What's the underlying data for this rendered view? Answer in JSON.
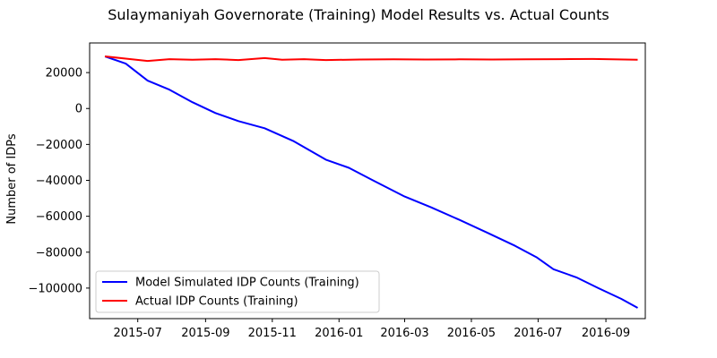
{
  "chart_data": {
    "type": "line",
    "title": "Sulaymaniyah Governorate (Training) Model Results vs. Actual Counts",
    "xlabel": "",
    "ylabel": "Number of IDPs",
    "x_ticks": [
      "2015-07",
      "2015-09",
      "2015-11",
      "2016-01",
      "2016-03",
      "2016-05",
      "2016-07",
      "2016-09"
    ],
    "y_ticks": [
      20000,
      0,
      -20000,
      -40000,
      -60000,
      -80000,
      -100000
    ],
    "y_tick_labels": [
      "20000",
      "0",
      "−20000",
      "−40000",
      "−60000",
      "−80000",
      "−100000"
    ],
    "ylim": [
      -117000,
      36500
    ],
    "xlim": [
      "2015-05-18",
      "2016-10-07"
    ],
    "grid": false,
    "legend_position": "lower-left",
    "series": [
      {
        "name": "Model Simulated IDP Counts (Training)",
        "color": "#0000ff",
        "points": [
          [
            "2015-06-01",
            29000
          ],
          [
            "2015-06-20",
            25000
          ],
          [
            "2015-07-10",
            15500
          ],
          [
            "2015-07-30",
            10500
          ],
          [
            "2015-08-20",
            3500
          ],
          [
            "2015-09-10",
            -2500
          ],
          [
            "2015-10-01",
            -7000
          ],
          [
            "2015-10-25",
            -11000
          ],
          [
            "2015-11-20",
            -18000
          ],
          [
            "2015-12-20",
            -28500
          ],
          [
            "2016-01-10",
            -33000
          ],
          [
            "2016-02-01",
            -40000
          ],
          [
            "2016-03-01",
            -49000
          ],
          [
            "2016-03-25",
            -55000
          ],
          [
            "2016-04-20",
            -62000
          ],
          [
            "2016-05-15",
            -69000
          ],
          [
            "2016-06-10",
            -76500
          ],
          [
            "2016-06-30",
            -83000
          ],
          [
            "2016-07-15",
            -89500
          ],
          [
            "2016-08-05",
            -94000
          ],
          [
            "2016-08-25",
            -100000
          ],
          [
            "2016-09-15",
            -106000
          ],
          [
            "2016-09-30",
            -111000
          ]
        ]
      },
      {
        "name": "Actual IDP Counts (Training)",
        "color": "#ff0000",
        "points": [
          [
            "2015-06-01",
            29000
          ],
          [
            "2015-06-20",
            27800
          ],
          [
            "2015-07-10",
            26500
          ],
          [
            "2015-07-30",
            27500
          ],
          [
            "2015-08-20",
            27200
          ],
          [
            "2015-09-10",
            27500
          ],
          [
            "2015-10-01",
            27000
          ],
          [
            "2015-10-25",
            28100
          ],
          [
            "2015-11-10",
            27200
          ],
          [
            "2015-11-30",
            27500
          ],
          [
            "2015-12-20",
            27000
          ],
          [
            "2016-01-20",
            27300
          ],
          [
            "2016-02-20",
            27400
          ],
          [
            "2016-03-20",
            27300
          ],
          [
            "2016-04-20",
            27400
          ],
          [
            "2016-05-20",
            27300
          ],
          [
            "2016-06-20",
            27400
          ],
          [
            "2016-07-20",
            27500
          ],
          [
            "2016-08-20",
            27600
          ],
          [
            "2016-09-30",
            27200
          ]
        ]
      }
    ]
  }
}
